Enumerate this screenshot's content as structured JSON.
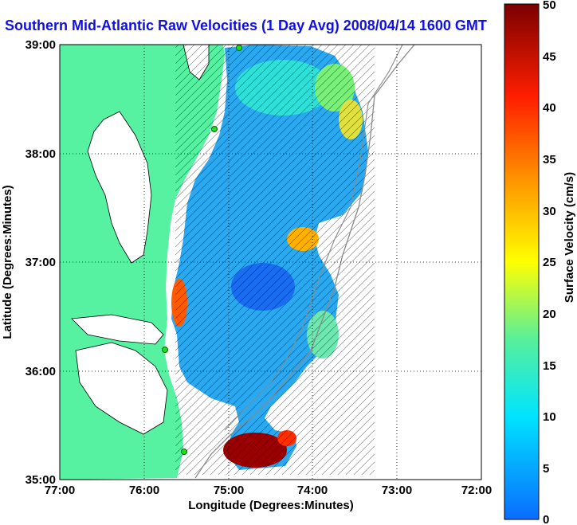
{
  "title": "Southern Mid-Atlantic Raw Velocities (1 Day Avg) 2008/04/14 1600 GMT",
  "x_axis": {
    "label": "Longitude (Degrees:Minutes)",
    "ticks": [
      "77:00",
      "76:00",
      "75:00",
      "74:00",
      "73:00",
      "72:00"
    ]
  },
  "y_axis": {
    "label": "Latitude (Degrees:Minutes)",
    "ticks": [
      "39:00",
      "38:00",
      "37:00",
      "36:00",
      "35:00"
    ]
  },
  "colorbar": {
    "label": "Surface Velocity (cm/s)",
    "ticks": [
      "50",
      "45",
      "40",
      "35",
      "30",
      "25",
      "20",
      "15",
      "10",
      "5",
      "0"
    ],
    "min": 0,
    "max": 50,
    "colors": [
      "#0a6cff",
      "#00e4ff",
      "#58f09a",
      "#ffff00",
      "#ff9a00",
      "#ff1e00",
      "#7a0000"
    ]
  },
  "colors": {
    "land": "#56f1a1",
    "coast": "#000000",
    "grid": "#000000",
    "bathymetry": "#8a8a8a",
    "arrows": "#000000",
    "site_markers": "#22dd22"
  }
}
